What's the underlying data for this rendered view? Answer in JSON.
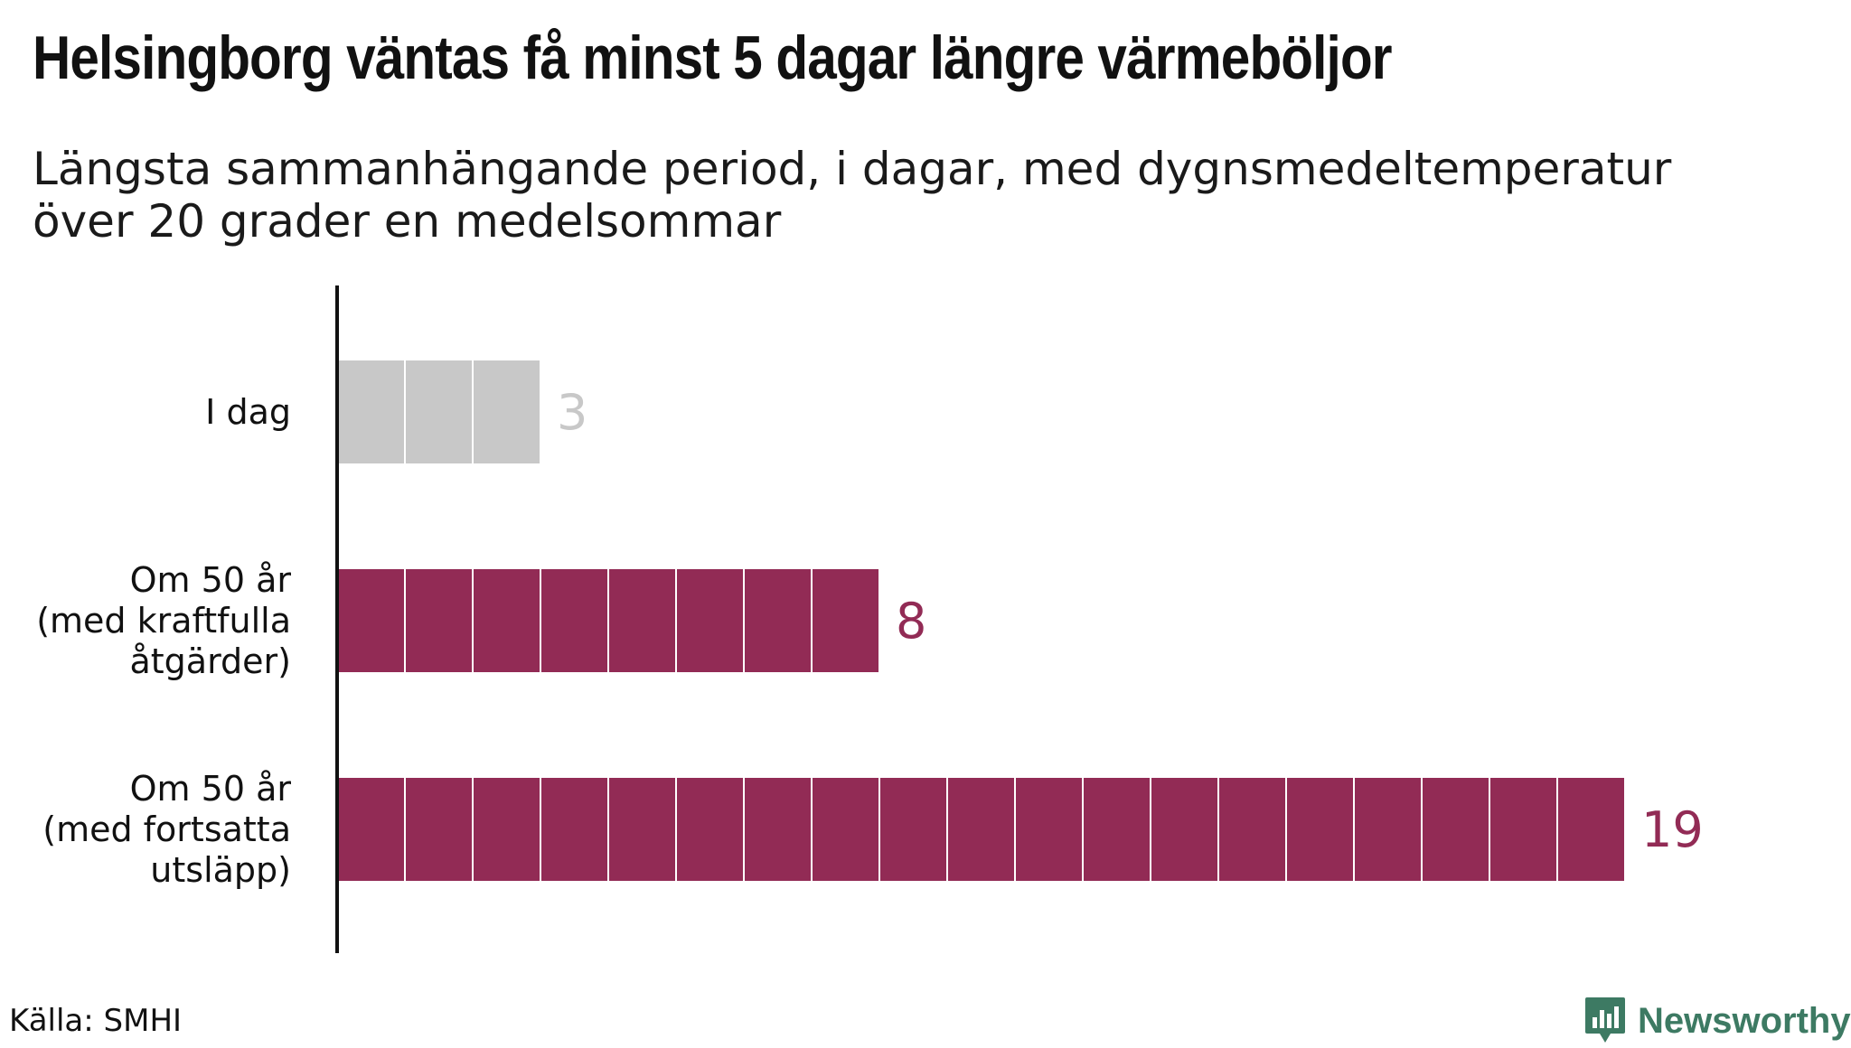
{
  "header": {
    "title": "Helsingborg väntas få minst 5 dagar längre värmeböljor",
    "subtitle_line1": "Längsta sammanhängande period, i dagar, med dygnsmedeltemperatur",
    "subtitle_line2": "över 20 grader en medelsommar"
  },
  "chart_data": {
    "type": "bar",
    "orientation": "horizontal",
    "title": "Helsingborg väntas få minst 5 dagar längre värmeböljor",
    "subtitle": "Längsta sammanhängande period, i dagar, med dygnsmedeltemperatur över 20 grader en medelsommar",
    "xlabel": "",
    "ylabel": "",
    "categories": [
      [
        "I dag"
      ],
      [
        "Om 50 år",
        "(med kraftfulla",
        "åtgärder)"
      ],
      [
        "Om 50 år",
        "(med fortsatta",
        "utsläpp)"
      ]
    ],
    "values": [
      3,
      8,
      19
    ],
    "colors": [
      "#c8c8c8",
      "#922b55",
      "#922b55"
    ],
    "label_colors": [
      "#c8c8c8",
      "#922b55",
      "#922b55"
    ],
    "segmented": true,
    "xlim": [
      0,
      19
    ],
    "grid": false,
    "legend": "none"
  },
  "footer": {
    "source": "Källa: SMHI",
    "brand": "Newsworthy",
    "brand_color": "#3d7a63",
    "brand_icon": "bar-chart-speech-bubble-icon"
  }
}
